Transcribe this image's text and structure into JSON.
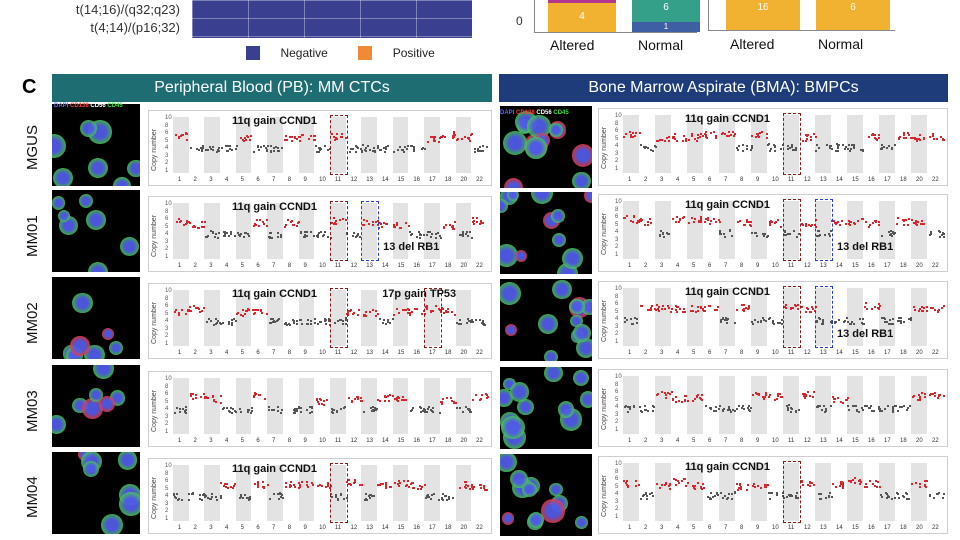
{
  "heatmap": {
    "row_labels": [
      "t(14;16)/(q32;q23)",
      "t(4;14)/(p16;32)"
    ],
    "legend": [
      {
        "label": "Negative",
        "color": "#3a3f8f"
      },
      {
        "label": "Positive",
        "color": "#f08a36"
      }
    ]
  },
  "bar_charts": [
    {
      "y_tick": "0",
      "categories": [
        "Altered",
        "Normal"
      ],
      "values": [
        [
          "4"
        ],
        [
          "6",
          "1"
        ]
      ]
    },
    {
      "y_tick": "",
      "categories": [
        "Altered",
        "Normal"
      ],
      "values": [
        [
          "16"
        ],
        [
          "6"
        ]
      ]
    }
  ],
  "panel_c": {
    "letter": "C",
    "left_header": "Peripheral Blood (PB): MM CTCs",
    "right_header": "Bone Marrow Aspirate (BMA): BMPCs",
    "stain_legend_pb": [
      {
        "text": "DAPI",
        "color": "#5a6bff"
      },
      {
        "text": "CD138",
        "color": "#ff3b3b"
      },
      {
        "text": "CD56",
        "color": "#ffffff"
      },
      {
        "text": "CD45",
        "color": "#3ddc4a"
      }
    ],
    "stain_legend_bma": [
      {
        "text": "DAPI",
        "color": "#5a6bff"
      },
      {
        "text": "CD138",
        "color": "#ff3b3b"
      },
      {
        "text": "CD56",
        "color": "#ffffff"
      },
      {
        "text": "CD45",
        "color": "#3ddc4a"
      }
    ],
    "row_labels": [
      "MGUS",
      "MM01",
      "MM02",
      "MM03",
      "MM04"
    ],
    "y_axis_label": "Copy number",
    "y_ticks": [
      "10",
      "8",
      "6",
      "5",
      "4",
      "3",
      "2",
      "1"
    ],
    "chromosomes": [
      "1",
      "2",
      "3",
      "4",
      "5",
      "6",
      "7",
      "8",
      "9",
      "10",
      "11",
      "12",
      "13",
      "14",
      "15",
      "16",
      "17",
      "18",
      "20",
      "22"
    ],
    "annotations": {
      "gain_ccnd1": "11q gain CCND1",
      "del_rb1": "13 del RB1",
      "gain_tp53": "17p gain TP53"
    }
  }
}
